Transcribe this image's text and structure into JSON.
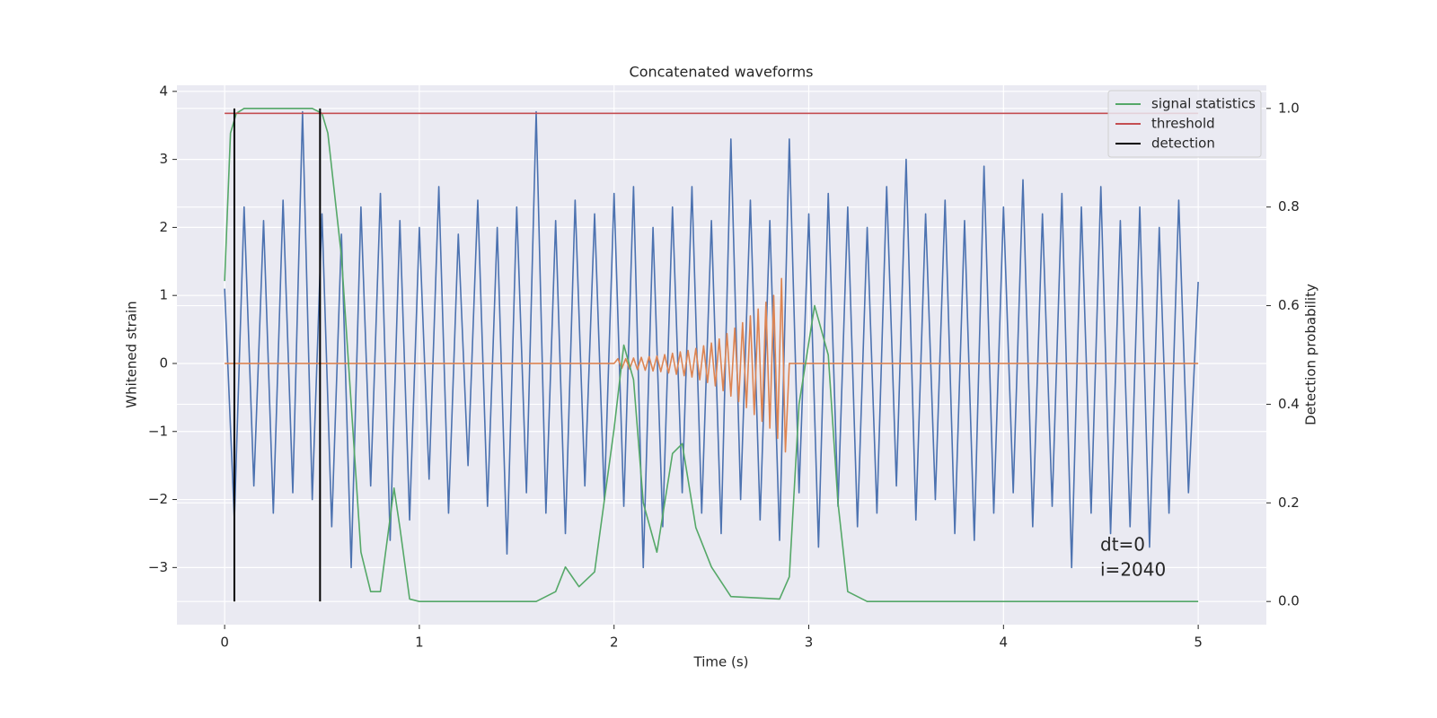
{
  "chart_data": {
    "type": "line",
    "title": "Concatenated waveforms",
    "xlabel": "Time (s)",
    "ylabel": "Whitened strain",
    "y2label": "Detection probability",
    "xlim": [
      -0.245,
      5.35
    ],
    "ylim": [
      -3.84,
      4.09
    ],
    "y2lim": [
      -0.047,
      1.047
    ],
    "xticks": [
      0,
      1,
      2,
      3,
      4,
      5
    ],
    "yticks": [
      {
        "value": -3,
        "label": "−3"
      },
      {
        "value": -2,
        "label": "−2"
      },
      {
        "value": -1,
        "label": "−1"
      },
      0,
      1,
      2,
      3,
      4
    ],
    "y2ticks": [
      {
        "value": 0,
        "label": "0.0"
      },
      {
        "value": 0.2,
        "label": "0.2"
      },
      {
        "value": 0.4,
        "label": "0.4"
      },
      {
        "value": 0.6,
        "label": "0.6"
      },
      {
        "value": 0.8,
        "label": "0.8"
      },
      {
        "value": 1.0,
        "label": "1.0"
      }
    ],
    "grid": true,
    "legend": "upper right",
    "annotations": [
      "dt=0",
      "i=2040"
    ],
    "series": [
      {
        "color": "#4c72b0",
        "axis": "y",
        "x": [
          0,
          0.05,
          0.1,
          0.15,
          0.2,
          0.25,
          0.3,
          0.35,
          0.4,
          0.45,
          0.5,
          0.55,
          0.6,
          0.65,
          0.7,
          0.75,
          0.8,
          0.85,
          0.9,
          0.95,
          1.0,
          1.05,
          1.1,
          1.15,
          1.2,
          1.25,
          1.3,
          1.35,
          1.4,
          1.45,
          1.5,
          1.55,
          1.6,
          1.65,
          1.7,
          1.75,
          1.8,
          1.85,
          1.9,
          1.95,
          2.0,
          2.05,
          2.1,
          2.15,
          2.2,
          2.25,
          2.3,
          2.35,
          2.4,
          2.45,
          2.5,
          2.55,
          2.6,
          2.65,
          2.7,
          2.75,
          2.8,
          2.85,
          2.9,
          2.95,
          3.0,
          3.05,
          3.1,
          3.15,
          3.2,
          3.25,
          3.3,
          3.35,
          3.4,
          3.45,
          3.5,
          3.55,
          3.6,
          3.65,
          3.7,
          3.75,
          3.8,
          3.85,
          3.9,
          3.95,
          4.0,
          4.05,
          4.1,
          4.15,
          4.2,
          4.25,
          4.3,
          4.35,
          4.4,
          4.45,
          4.5,
          4.55,
          4.6,
          4.65,
          4.7,
          4.75,
          4.8,
          4.85,
          4.9,
          4.95,
          5.0
        ],
        "values": [
          1.1,
          -2.3,
          2.3,
          -1.8,
          2.1,
          -2.2,
          2.4,
          -1.9,
          3.7,
          -2.0,
          2.2,
          -2.4,
          1.9,
          -3.0,
          2.3,
          -1.8,
          2.5,
          -2.6,
          2.1,
          -2.3,
          2.0,
          -1.7,
          2.6,
          -2.2,
          1.9,
          -1.5,
          2.4,
          -2.1,
          2.0,
          -2.8,
          2.3,
          -1.9,
          3.7,
          -2.2,
          2.1,
          -2.5,
          2.4,
          -1.8,
          2.2,
          -2.0,
          2.5,
          -2.1,
          2.6,
          -3.0,
          2.0,
          -2.4,
          2.3,
          -1.9,
          2.6,
          -2.2,
          2.1,
          -2.5,
          3.3,
          -2.0,
          2.4,
          -2.3,
          2.1,
          -2.6,
          3.3,
          -1.9,
          2.2,
          -2.7,
          2.5,
          -2.1,
          2.3,
          -2.4,
          2.0,
          -2.2,
          2.6,
          -1.8,
          3.0,
          -2.3,
          2.2,
          -2.0,
          2.4,
          -2.5,
          2.1,
          -2.6,
          2.9,
          -2.2,
          2.3,
          -1.9,
          2.7,
          -2.4,
          2.2,
          -2.1,
          2.5,
          -3.0,
          2.3,
          -2.2,
          2.6,
          -2.5,
          2.1,
          -2.4,
          2.3,
          -2.7,
          2.0,
          -2.2,
          2.4,
          -1.9,
          1.2
        ]
      },
      {
        "color": "#dd8452",
        "axis": "y",
        "x": [
          0,
          2.0,
          2.02,
          2.04,
          2.06,
          2.08,
          2.1,
          2.12,
          2.14,
          2.16,
          2.18,
          2.2,
          2.22,
          2.24,
          2.26,
          2.28,
          2.3,
          2.32,
          2.34,
          2.36,
          2.38,
          2.4,
          2.42,
          2.44,
          2.46,
          2.48,
          2.5,
          2.52,
          2.54,
          2.56,
          2.58,
          2.6,
          2.62,
          2.64,
          2.66,
          2.68,
          2.7,
          2.72,
          2.74,
          2.76,
          2.78,
          2.8,
          2.82,
          2.84,
          2.86,
          2.88,
          2.9,
          5.0
        ],
        "values": [
          0,
          0,
          0.07,
          -0.07,
          0.07,
          -0.08,
          0.08,
          -0.09,
          0.09,
          -0.1,
          0.1,
          -0.11,
          0.11,
          -0.12,
          0.13,
          -0.14,
          0.15,
          -0.16,
          0.17,
          -0.18,
          0.19,
          -0.2,
          0.22,
          -0.24,
          0.26,
          -0.28,
          0.3,
          -0.33,
          0.36,
          -0.4,
          0.44,
          -0.48,
          0.52,
          -0.56,
          0.6,
          -0.65,
          0.7,
          -0.75,
          0.8,
          -0.85,
          0.9,
          -0.95,
          1.0,
          -1.1,
          1.25,
          -1.3,
          0,
          0
        ]
      },
      {
        "name": "signal statistics",
        "color": "#55a868",
        "axis": "y2",
        "x": [
          0,
          0.03,
          0.06,
          0.1,
          0.45,
          0.5,
          0.53,
          0.6,
          0.65,
          0.7,
          0.75,
          0.8,
          0.87,
          0.9,
          0.95,
          1.0,
          1.6,
          1.7,
          1.75,
          1.82,
          1.9,
          2.0,
          2.05,
          2.1,
          2.15,
          2.22,
          2.3,
          2.35,
          2.42,
          2.5,
          2.6,
          2.85,
          2.9,
          2.95,
          3.03,
          3.1,
          3.15,
          3.2,
          3.3,
          5.0
        ],
        "values": [
          0.65,
          0.95,
          0.99,
          1.0,
          1.0,
          0.99,
          0.95,
          0.7,
          0.4,
          0.1,
          0.02,
          0.02,
          0.23,
          0.15,
          0.005,
          0,
          0,
          0.02,
          0.07,
          0.03,
          0.06,
          0.35,
          0.52,
          0.45,
          0.2,
          0.1,
          0.3,
          0.32,
          0.15,
          0.07,
          0.01,
          0.005,
          0.05,
          0.4,
          0.6,
          0.5,
          0.2,
          0.02,
          0,
          0
        ]
      },
      {
        "name": "threshold",
        "color": "#c44e52",
        "axis": "y2",
        "x": [
          0,
          5.0
        ],
        "values": [
          0.99,
          0.99
        ]
      },
      {
        "name": "detection",
        "color": "#000000",
        "axis": "y2",
        "kind": "vline",
        "x": [
          0.05,
          0.49
        ],
        "values": [
          1.0,
          1.0
        ]
      }
    ]
  }
}
